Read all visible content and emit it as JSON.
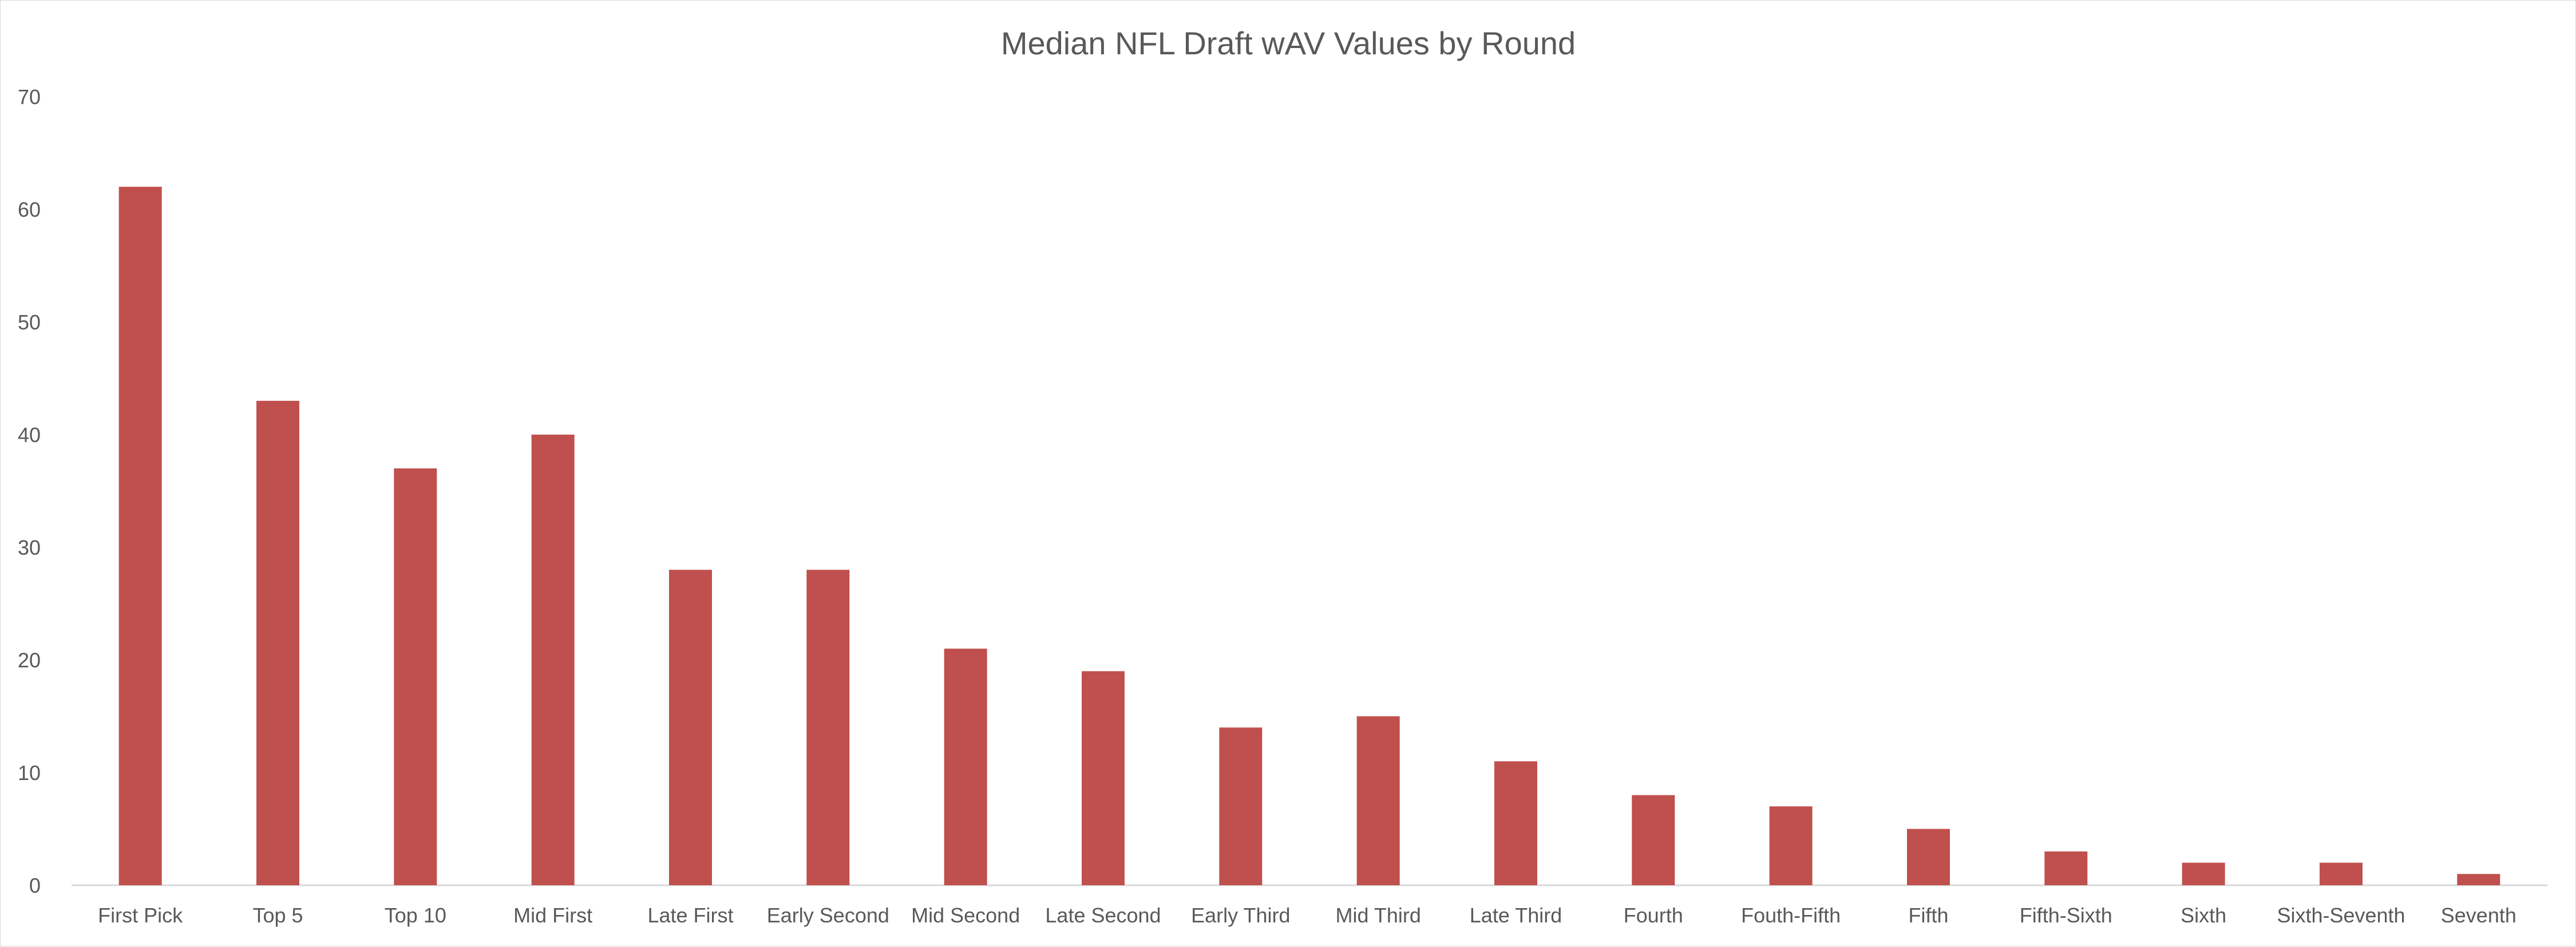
{
  "chart_data": {
    "type": "bar",
    "title": "Median NFL Draft wAV Values by Round",
    "xlabel": "",
    "ylabel": "",
    "categories": [
      "First Pick",
      "Top 5",
      "Top 10",
      "Mid First",
      "Late First",
      "Early Second",
      "Mid Second",
      "Late Second",
      "Early Third",
      "Mid Third",
      "Late Third",
      "Fourth",
      "Fouth-Fifth",
      "Fifth",
      "Fifth-Sixth",
      "Sixth",
      "Sixth-Seventh",
      "Seventh"
    ],
    "values": [
      62,
      43,
      37,
      40,
      28,
      28,
      21,
      19,
      14,
      15,
      11,
      8,
      7,
      5,
      3,
      2,
      2,
      1
    ],
    "ylim": [
      0,
      70
    ],
    "yticks": [
      0,
      10,
      20,
      30,
      40,
      50,
      60,
      70
    ],
    "grid": false,
    "legend": "none",
    "bar_color": "#C0504D",
    "axis_color": "#d9d9d9",
    "text_color": "#595959"
  }
}
